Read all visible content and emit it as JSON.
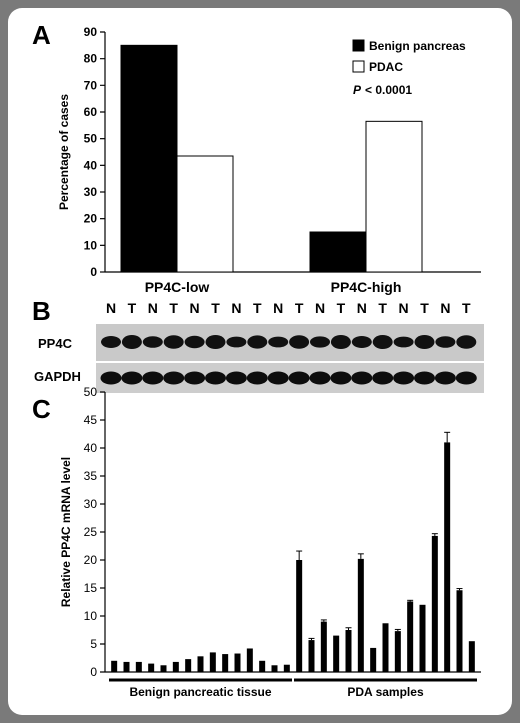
{
  "panels": {
    "a": {
      "letter": "A"
    },
    "b": {
      "letter": "B",
      "lane_labels": [
        "N",
        "T",
        "N",
        "T",
        "N",
        "T",
        "N",
        "T",
        "N",
        "T",
        "N",
        "T",
        "N",
        "T",
        "N",
        "T",
        "N",
        "T"
      ],
      "row_labels": [
        "PP4C",
        "GAPDH"
      ]
    },
    "c": {
      "letter": "C"
    }
  },
  "chart_data": [
    {
      "type": "bar",
      "panel": "A",
      "categories": [
        "PP4C-low",
        "PP4C-high"
      ],
      "series": [
        {
          "name": "Benign pancreas",
          "values": [
            85,
            15
          ],
          "color": "#000000"
        },
        {
          "name": "PDAC",
          "values": [
            43.5,
            56.5
          ],
          "color": "#ffffff"
        }
      ],
      "ylabel": "Percentage of cases",
      "ylim": [
        0,
        90
      ],
      "yticks": [
        0,
        10,
        20,
        30,
        40,
        50,
        60,
        70,
        80,
        90
      ],
      "annotation": {
        "italic": "P",
        "text": "< 0.0001"
      },
      "legend": "top-right",
      "grid": false
    },
    {
      "type": "bar",
      "panel": "C",
      "values": [
        2.0,
        1.8,
        1.8,
        1.5,
        1.2,
        1.8,
        2.3,
        2.8,
        3.5,
        3.2,
        3.3,
        4.2,
        2.0,
        1.2,
        1.3,
        20.0,
        5.7,
        9.0,
        6.5,
        7.5,
        20.2,
        4.3,
        8.7,
        7.3,
        12.6,
        12.0,
        24.3,
        41.0,
        14.6,
        5.5
      ],
      "errors": [
        0,
        0,
        0,
        0,
        0,
        0,
        0,
        0,
        0,
        0,
        0,
        0,
        0,
        0,
        0,
        1.6,
        0.3,
        0.3,
        0,
        0.4,
        0.9,
        0,
        0,
        0.3,
        0.2,
        0,
        0.4,
        1.8,
        0.3,
        0
      ],
      "groups": [
        {
          "label": "Benign pancreatic tissue",
          "count": 15
        },
        {
          "label": "PDA samples",
          "count": 15
        }
      ],
      "ylabel": "Relative PP4C mRNA level",
      "ylim": [
        0,
        50
      ],
      "yticks": [
        0,
        5,
        10,
        15,
        20,
        25,
        30,
        35,
        40,
        45,
        50
      ],
      "grid": false
    }
  ]
}
